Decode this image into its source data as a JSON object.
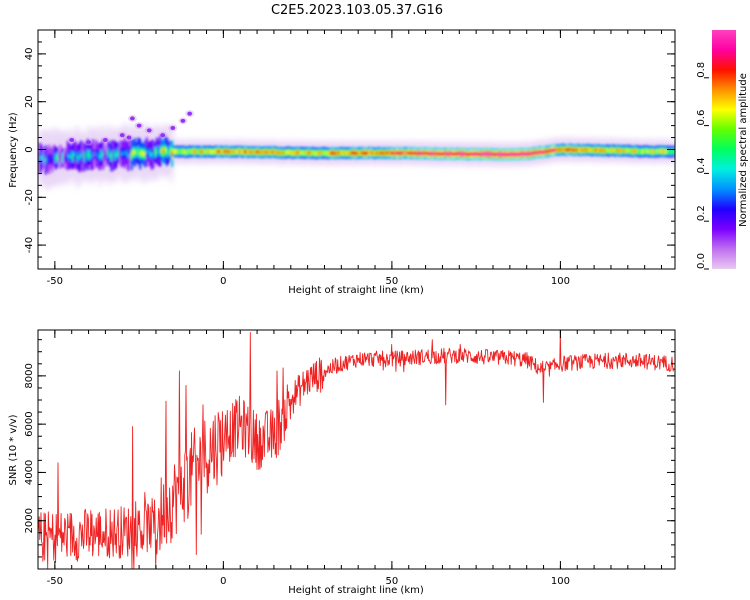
{
  "figure": {
    "title": "C2E5.2023.103.05.37.G16"
  },
  "chart_data": [
    {
      "type": "heatmap",
      "xlabel": "Height of straight line (km)",
      "ylabel": "Frequency (Hz)",
      "xlim": [
        -55,
        134
      ],
      "ylim": [
        -50,
        50
      ],
      "xticks": [
        -50,
        0,
        50,
        100
      ],
      "yticks": [
        -40,
        -20,
        0,
        20,
        40
      ],
      "grid": false,
      "colorbar": {
        "label": "Normalized spectral amplitude",
        "range": [
          0,
          1
        ],
        "ticks": [
          0.0,
          0.2,
          0.4,
          0.6,
          0.8
        ],
        "colormap": [
          "#e8c8f0",
          "#c070f0",
          "#7a00ff",
          "#2000ff",
          "#0090ff",
          "#00f0e0",
          "#00ff60",
          "#60ff00",
          "#ffff00",
          "#ff9000",
          "#ff1000",
          "#ff00a0",
          "#ff40c0"
        ]
      },
      "ridge_frequency_hz": [
        [
          -55,
          -4
        ],
        [
          -45,
          -3
        ],
        [
          -35,
          -2
        ],
        [
          -25,
          -1.5
        ],
        [
          -15,
          -1
        ],
        [
          0,
          -0.8
        ],
        [
          25,
          -1.5
        ],
        [
          50,
          -1.5
        ],
        [
          75,
          -2
        ],
        [
          88,
          -2
        ],
        [
          95,
          -1
        ],
        [
          100,
          0
        ],
        [
          134,
          -1
        ]
      ],
      "ridge_amplitude": [
        [
          -55,
          0.3
        ],
        [
          -40,
          0.35
        ],
        [
          -25,
          0.45
        ],
        [
          -15,
          0.6
        ],
        [
          0,
          0.75
        ],
        [
          25,
          0.7
        ],
        [
          50,
          0.8
        ],
        [
          70,
          0.92
        ],
        [
          85,
          0.95
        ],
        [
          95,
          0.88
        ],
        [
          110,
          0.72
        ],
        [
          134,
          0.6
        ]
      ],
      "scattered_points": [
        [
          -10,
          15
        ],
        [
          -12,
          12
        ],
        [
          -15,
          9
        ],
        [
          -18,
          6
        ],
        [
          -22,
          8
        ],
        [
          -25,
          10
        ],
        [
          -27,
          13
        ],
        [
          -28,
          5
        ],
        [
          -30,
          6
        ],
        [
          -35,
          4
        ],
        [
          -40,
          3
        ],
        [
          -45,
          4
        ]
      ]
    },
    {
      "type": "line",
      "xlabel": "Height of straight line (km)",
      "ylabel": "SNR (10 * v/v)",
      "xlim": [
        -55,
        134
      ],
      "ylim": [
        0,
        9900
      ],
      "xticks": [
        -50,
        0,
        50,
        100
      ],
      "yticks": [
        2000,
        4000,
        6000,
        8000
      ],
      "grid": false,
      "series": [
        {
          "color": "#ee2222",
          "x": [
            -55,
            -45,
            -35,
            -25,
            -20,
            -15,
            -10,
            -5,
            0,
            5,
            10,
            15,
            20,
            25,
            30,
            35,
            40,
            50,
            60,
            70,
            80,
            85,
            90,
            95,
            100,
            110,
            120,
            134
          ],
          "y": [
            1300,
            1400,
            1500,
            1600,
            1900,
            2900,
            3900,
            4800,
            5400,
            6000,
            5300,
            5500,
            7000,
            7800,
            8200,
            8500,
            8700,
            8700,
            8800,
            8850,
            8750,
            8750,
            8650,
            8200,
            8500,
            8600,
            8650,
            8500
          ]
        }
      ],
      "highlight_points": [
        [
          -49,
          4400
        ],
        [
          -27,
          5900
        ],
        [
          -17,
          6950
        ],
        [
          -13,
          8200
        ],
        [
          -11,
          7600
        ],
        [
          -6,
          6800
        ],
        [
          8,
          9800
        ],
        [
          16,
          8200
        ],
        [
          50,
          9300
        ],
        [
          62,
          9500
        ],
        [
          100,
          9850
        ],
        [
          -20,
          0
        ],
        [
          -8,
          600
        ],
        [
          66,
          6800
        ],
        [
          95,
          6900
        ]
      ]
    }
  ]
}
